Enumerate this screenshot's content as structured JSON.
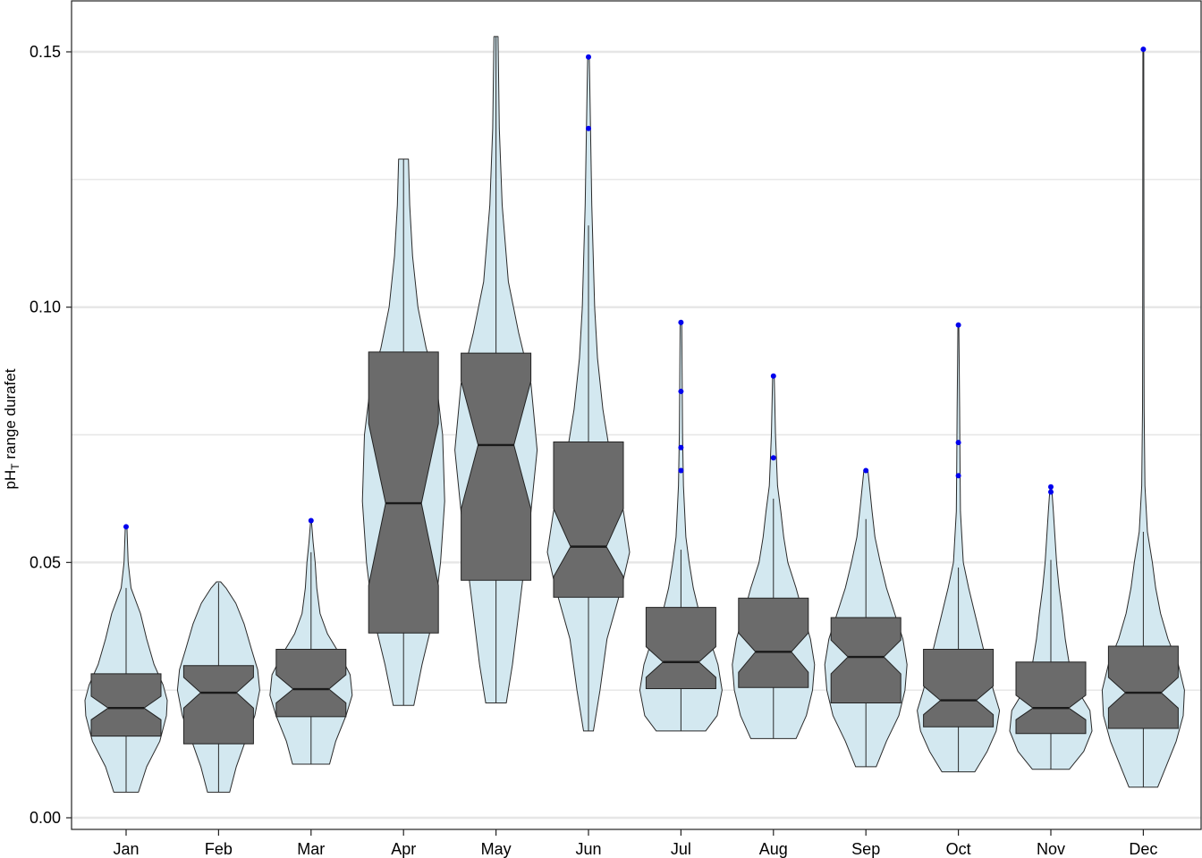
{
  "chart_data": {
    "type": "violin-boxplot",
    "title": "",
    "xlabel": "",
    "ylabel": "pH",
    "ylabel_subscript": "T",
    "ylabel_suffix": " range durafet",
    "ylim": [
      -0.002,
      0.16
    ],
    "yticks": [
      0.0,
      0.05,
      0.1,
      0.15
    ],
    "ytick_labels": [
      "0.00",
      "0.05",
      "0.10",
      "0.15"
    ],
    "y_minor_gridlines": [
      0.025,
      0.075,
      0.125
    ],
    "grid": true,
    "legend": "none",
    "colors": {
      "violin": "#d3e8f0",
      "box": "#6b6b6b",
      "outlier": "#0000ee",
      "grid": "#e6e6e6"
    },
    "categories": [
      "Jan",
      "Feb",
      "Mar",
      "Apr",
      "May",
      "Jun",
      "Jul",
      "Aug",
      "Sep",
      "Oct",
      "Nov",
      "Dec"
    ],
    "boxes": [
      {
        "month": "Jan",
        "q1": 0.016,
        "median": 0.0215,
        "q3": 0.0282,
        "notch_low": 0.0192,
        "notch_high": 0.0238,
        "whisker_low": 0.005,
        "whisker_high": 0.045,
        "outliers": [
          0.057
        ]
      },
      {
        "month": "Feb",
        "q1": 0.0145,
        "median": 0.0245,
        "q3": 0.0298,
        "notch_low": 0.0215,
        "notch_high": 0.0275,
        "whisker_low": 0.005,
        "whisker_high": 0.046,
        "outliers": []
      },
      {
        "month": "Mar",
        "q1": 0.0198,
        "median": 0.0252,
        "q3": 0.033,
        "notch_low": 0.0225,
        "notch_high": 0.028,
        "whisker_low": 0.0105,
        "whisker_high": 0.052,
        "outliers": [
          0.0582
        ]
      },
      {
        "month": "Apr",
        "q1": 0.0362,
        "median": 0.0616,
        "q3": 0.0912,
        "notch_low": 0.0455,
        "notch_high": 0.0772,
        "whisker_low": 0.022,
        "whisker_high": 0.129,
        "outliers": []
      },
      {
        "month": "May",
        "q1": 0.0465,
        "median": 0.073,
        "q3": 0.091,
        "notch_low": 0.0605,
        "notch_high": 0.0855,
        "whisker_low": 0.0225,
        "whisker_high": 0.153,
        "outliers": []
      },
      {
        "month": "Jun",
        "q1": 0.0432,
        "median": 0.0531,
        "q3": 0.0736,
        "notch_low": 0.0472,
        "notch_high": 0.0605,
        "whisker_low": 0.017,
        "whisker_high": 0.116,
        "outliers": [
          0.135,
          0.149
        ]
      },
      {
        "month": "Jul",
        "q1": 0.0253,
        "median": 0.0305,
        "q3": 0.0412,
        "notch_low": 0.0275,
        "notch_high": 0.0335,
        "whisker_low": 0.017,
        "whisker_high": 0.0525,
        "outliers": [
          0.068,
          0.0725,
          0.0835,
          0.097
        ]
      },
      {
        "month": "Aug",
        "q1": 0.0255,
        "median": 0.0325,
        "q3": 0.043,
        "notch_low": 0.0285,
        "notch_high": 0.0362,
        "whisker_low": 0.0155,
        "whisker_high": 0.0625,
        "outliers": [
          0.0705,
          0.0865
        ]
      },
      {
        "month": "Sep",
        "q1": 0.0225,
        "median": 0.0315,
        "q3": 0.0392,
        "notch_low": 0.0282,
        "notch_high": 0.0348,
        "whisker_low": 0.01,
        "whisker_high": 0.0585,
        "outliers": [
          0.068
        ]
      },
      {
        "month": "Oct",
        "q1": 0.0178,
        "median": 0.023,
        "q3": 0.033,
        "notch_low": 0.0202,
        "notch_high": 0.0258,
        "whisker_low": 0.009,
        "whisker_high": 0.049,
        "outliers": [
          0.067,
          0.0735,
          0.0965
        ]
      },
      {
        "month": "Nov",
        "q1": 0.0165,
        "median": 0.0215,
        "q3": 0.0305,
        "notch_low": 0.0192,
        "notch_high": 0.024,
        "whisker_low": 0.0095,
        "whisker_high": 0.0505,
        "outliers": [
          0.0638,
          0.0648
        ]
      },
      {
        "month": "Dec",
        "q1": 0.0175,
        "median": 0.0245,
        "q3": 0.0336,
        "notch_low": 0.0215,
        "notch_high": 0.0275,
        "whisker_low": 0.006,
        "whisker_high": 0.056,
        "outliers": [
          0.1505
        ]
      }
    ],
    "violins": [
      {
        "month": "Jan",
        "profile": [
          [
            0.005,
            0.3
          ],
          [
            0.01,
            0.5
          ],
          [
            0.015,
            0.82
          ],
          [
            0.02,
            0.98
          ],
          [
            0.023,
            1.0
          ],
          [
            0.026,
            0.9
          ],
          [
            0.03,
            0.68
          ],
          [
            0.035,
            0.5
          ],
          [
            0.04,
            0.35
          ],
          [
            0.045,
            0.12
          ],
          [
            0.05,
            0.05
          ],
          [
            0.057,
            0.02
          ]
        ]
      },
      {
        "month": "Feb",
        "profile": [
          [
            0.005,
            0.27
          ],
          [
            0.01,
            0.43
          ],
          [
            0.015,
            0.65
          ],
          [
            0.02,
            0.88
          ],
          [
            0.025,
            1.0
          ],
          [
            0.029,
            0.95
          ],
          [
            0.033,
            0.8
          ],
          [
            0.038,
            0.62
          ],
          [
            0.042,
            0.42
          ],
          [
            0.045,
            0.18
          ],
          [
            0.0462,
            0.05
          ]
        ]
      },
      {
        "month": "Mar",
        "profile": [
          [
            0.0105,
            0.45
          ],
          [
            0.015,
            0.6
          ],
          [
            0.02,
            0.85
          ],
          [
            0.024,
            1.0
          ],
          [
            0.028,
            0.95
          ],
          [
            0.032,
            0.7
          ],
          [
            0.036,
            0.4
          ],
          [
            0.04,
            0.22
          ],
          [
            0.045,
            0.14
          ],
          [
            0.05,
            0.1
          ],
          [
            0.054,
            0.05
          ],
          [
            0.058,
            0.01
          ]
        ]
      },
      {
        "month": "Apr",
        "profile": [
          [
            0.022,
            0.25
          ],
          [
            0.03,
            0.45
          ],
          [
            0.04,
            0.75
          ],
          [
            0.05,
            0.9
          ],
          [
            0.062,
            1.0
          ],
          [
            0.075,
            0.95
          ],
          [
            0.085,
            0.8
          ],
          [
            0.092,
            0.55
          ],
          [
            0.1,
            0.35
          ],
          [
            0.11,
            0.22
          ],
          [
            0.12,
            0.15
          ],
          [
            0.129,
            0.12
          ]
        ]
      },
      {
        "month": "May",
        "profile": [
          [
            0.0225,
            0.25
          ],
          [
            0.03,
            0.4
          ],
          [
            0.04,
            0.55
          ],
          [
            0.05,
            0.7
          ],
          [
            0.06,
            0.85
          ],
          [
            0.072,
            1.0
          ],
          [
            0.085,
            0.85
          ],
          [
            0.095,
            0.55
          ],
          [
            0.105,
            0.3
          ],
          [
            0.12,
            0.15
          ],
          [
            0.135,
            0.08
          ],
          [
            0.153,
            0.05
          ]
        ]
      },
      {
        "month": "Jun",
        "profile": [
          [
            0.017,
            0.12
          ],
          [
            0.025,
            0.28
          ],
          [
            0.035,
            0.45
          ],
          [
            0.045,
            0.8
          ],
          [
            0.052,
            1.0
          ],
          [
            0.06,
            0.85
          ],
          [
            0.07,
            0.55
          ],
          [
            0.08,
            0.35
          ],
          [
            0.09,
            0.22
          ],
          [
            0.1,
            0.15
          ],
          [
            0.12,
            0.08
          ],
          [
            0.14,
            0.04
          ],
          [
            0.149,
            0.02
          ]
        ]
      },
      {
        "month": "Jul",
        "profile": [
          [
            0.017,
            0.6
          ],
          [
            0.02,
            0.88
          ],
          [
            0.025,
            1.0
          ],
          [
            0.03,
            0.9
          ],
          [
            0.035,
            0.7
          ],
          [
            0.04,
            0.45
          ],
          [
            0.045,
            0.3
          ],
          [
            0.05,
            0.2
          ],
          [
            0.055,
            0.12
          ],
          [
            0.065,
            0.06
          ],
          [
            0.075,
            0.04
          ],
          [
            0.085,
            0.03
          ],
          [
            0.097,
            0.02
          ]
        ]
      },
      {
        "month": "Aug",
        "profile": [
          [
            0.0155,
            0.55
          ],
          [
            0.02,
            0.8
          ],
          [
            0.025,
            0.95
          ],
          [
            0.03,
            1.0
          ],
          [
            0.035,
            0.9
          ],
          [
            0.04,
            0.72
          ],
          [
            0.045,
            0.55
          ],
          [
            0.05,
            0.35
          ],
          [
            0.055,
            0.25
          ],
          [
            0.06,
            0.18
          ],
          [
            0.065,
            0.1
          ],
          [
            0.075,
            0.05
          ],
          [
            0.0865,
            0.02
          ]
        ]
      },
      {
        "month": "Sep",
        "profile": [
          [
            0.01,
            0.25
          ],
          [
            0.015,
            0.5
          ],
          [
            0.02,
            0.8
          ],
          [
            0.025,
            0.95
          ],
          [
            0.03,
            1.0
          ],
          [
            0.035,
            0.9
          ],
          [
            0.04,
            0.7
          ],
          [
            0.045,
            0.5
          ],
          [
            0.05,
            0.35
          ],
          [
            0.055,
            0.22
          ],
          [
            0.06,
            0.15
          ],
          [
            0.068,
            0.05
          ]
        ]
      },
      {
        "month": "Oct",
        "profile": [
          [
            0.009,
            0.4
          ],
          [
            0.013,
            0.7
          ],
          [
            0.017,
            0.92
          ],
          [
            0.021,
            1.0
          ],
          [
            0.025,
            0.85
          ],
          [
            0.03,
            0.7
          ],
          [
            0.035,
            0.55
          ],
          [
            0.04,
            0.4
          ],
          [
            0.045,
            0.25
          ],
          [
            0.05,
            0.12
          ],
          [
            0.06,
            0.05
          ],
          [
            0.07,
            0.04
          ],
          [
            0.08,
            0.03
          ],
          [
            0.0965,
            0.01
          ]
        ]
      },
      {
        "month": "Nov",
        "profile": [
          [
            0.0095,
            0.45
          ],
          [
            0.013,
            0.8
          ],
          [
            0.017,
            1.0
          ],
          [
            0.021,
            0.95
          ],
          [
            0.025,
            0.65
          ],
          [
            0.03,
            0.45
          ],
          [
            0.035,
            0.35
          ],
          [
            0.04,
            0.28
          ],
          [
            0.045,
            0.2
          ],
          [
            0.05,
            0.14
          ],
          [
            0.055,
            0.1
          ],
          [
            0.06,
            0.06
          ],
          [
            0.0648,
            0.02
          ]
        ]
      },
      {
        "month": "Dec",
        "profile": [
          [
            0.006,
            0.35
          ],
          [
            0.01,
            0.55
          ],
          [
            0.015,
            0.8
          ],
          [
            0.02,
            0.97
          ],
          [
            0.025,
            1.0
          ],
          [
            0.03,
            0.85
          ],
          [
            0.035,
            0.6
          ],
          [
            0.04,
            0.42
          ],
          [
            0.045,
            0.3
          ],
          [
            0.05,
            0.22
          ],
          [
            0.056,
            0.1
          ],
          [
            0.065,
            0.04
          ],
          [
            0.08,
            0.02
          ],
          [
            0.1,
            0.015
          ],
          [
            0.1505,
            0.01
          ]
        ]
      }
    ]
  }
}
